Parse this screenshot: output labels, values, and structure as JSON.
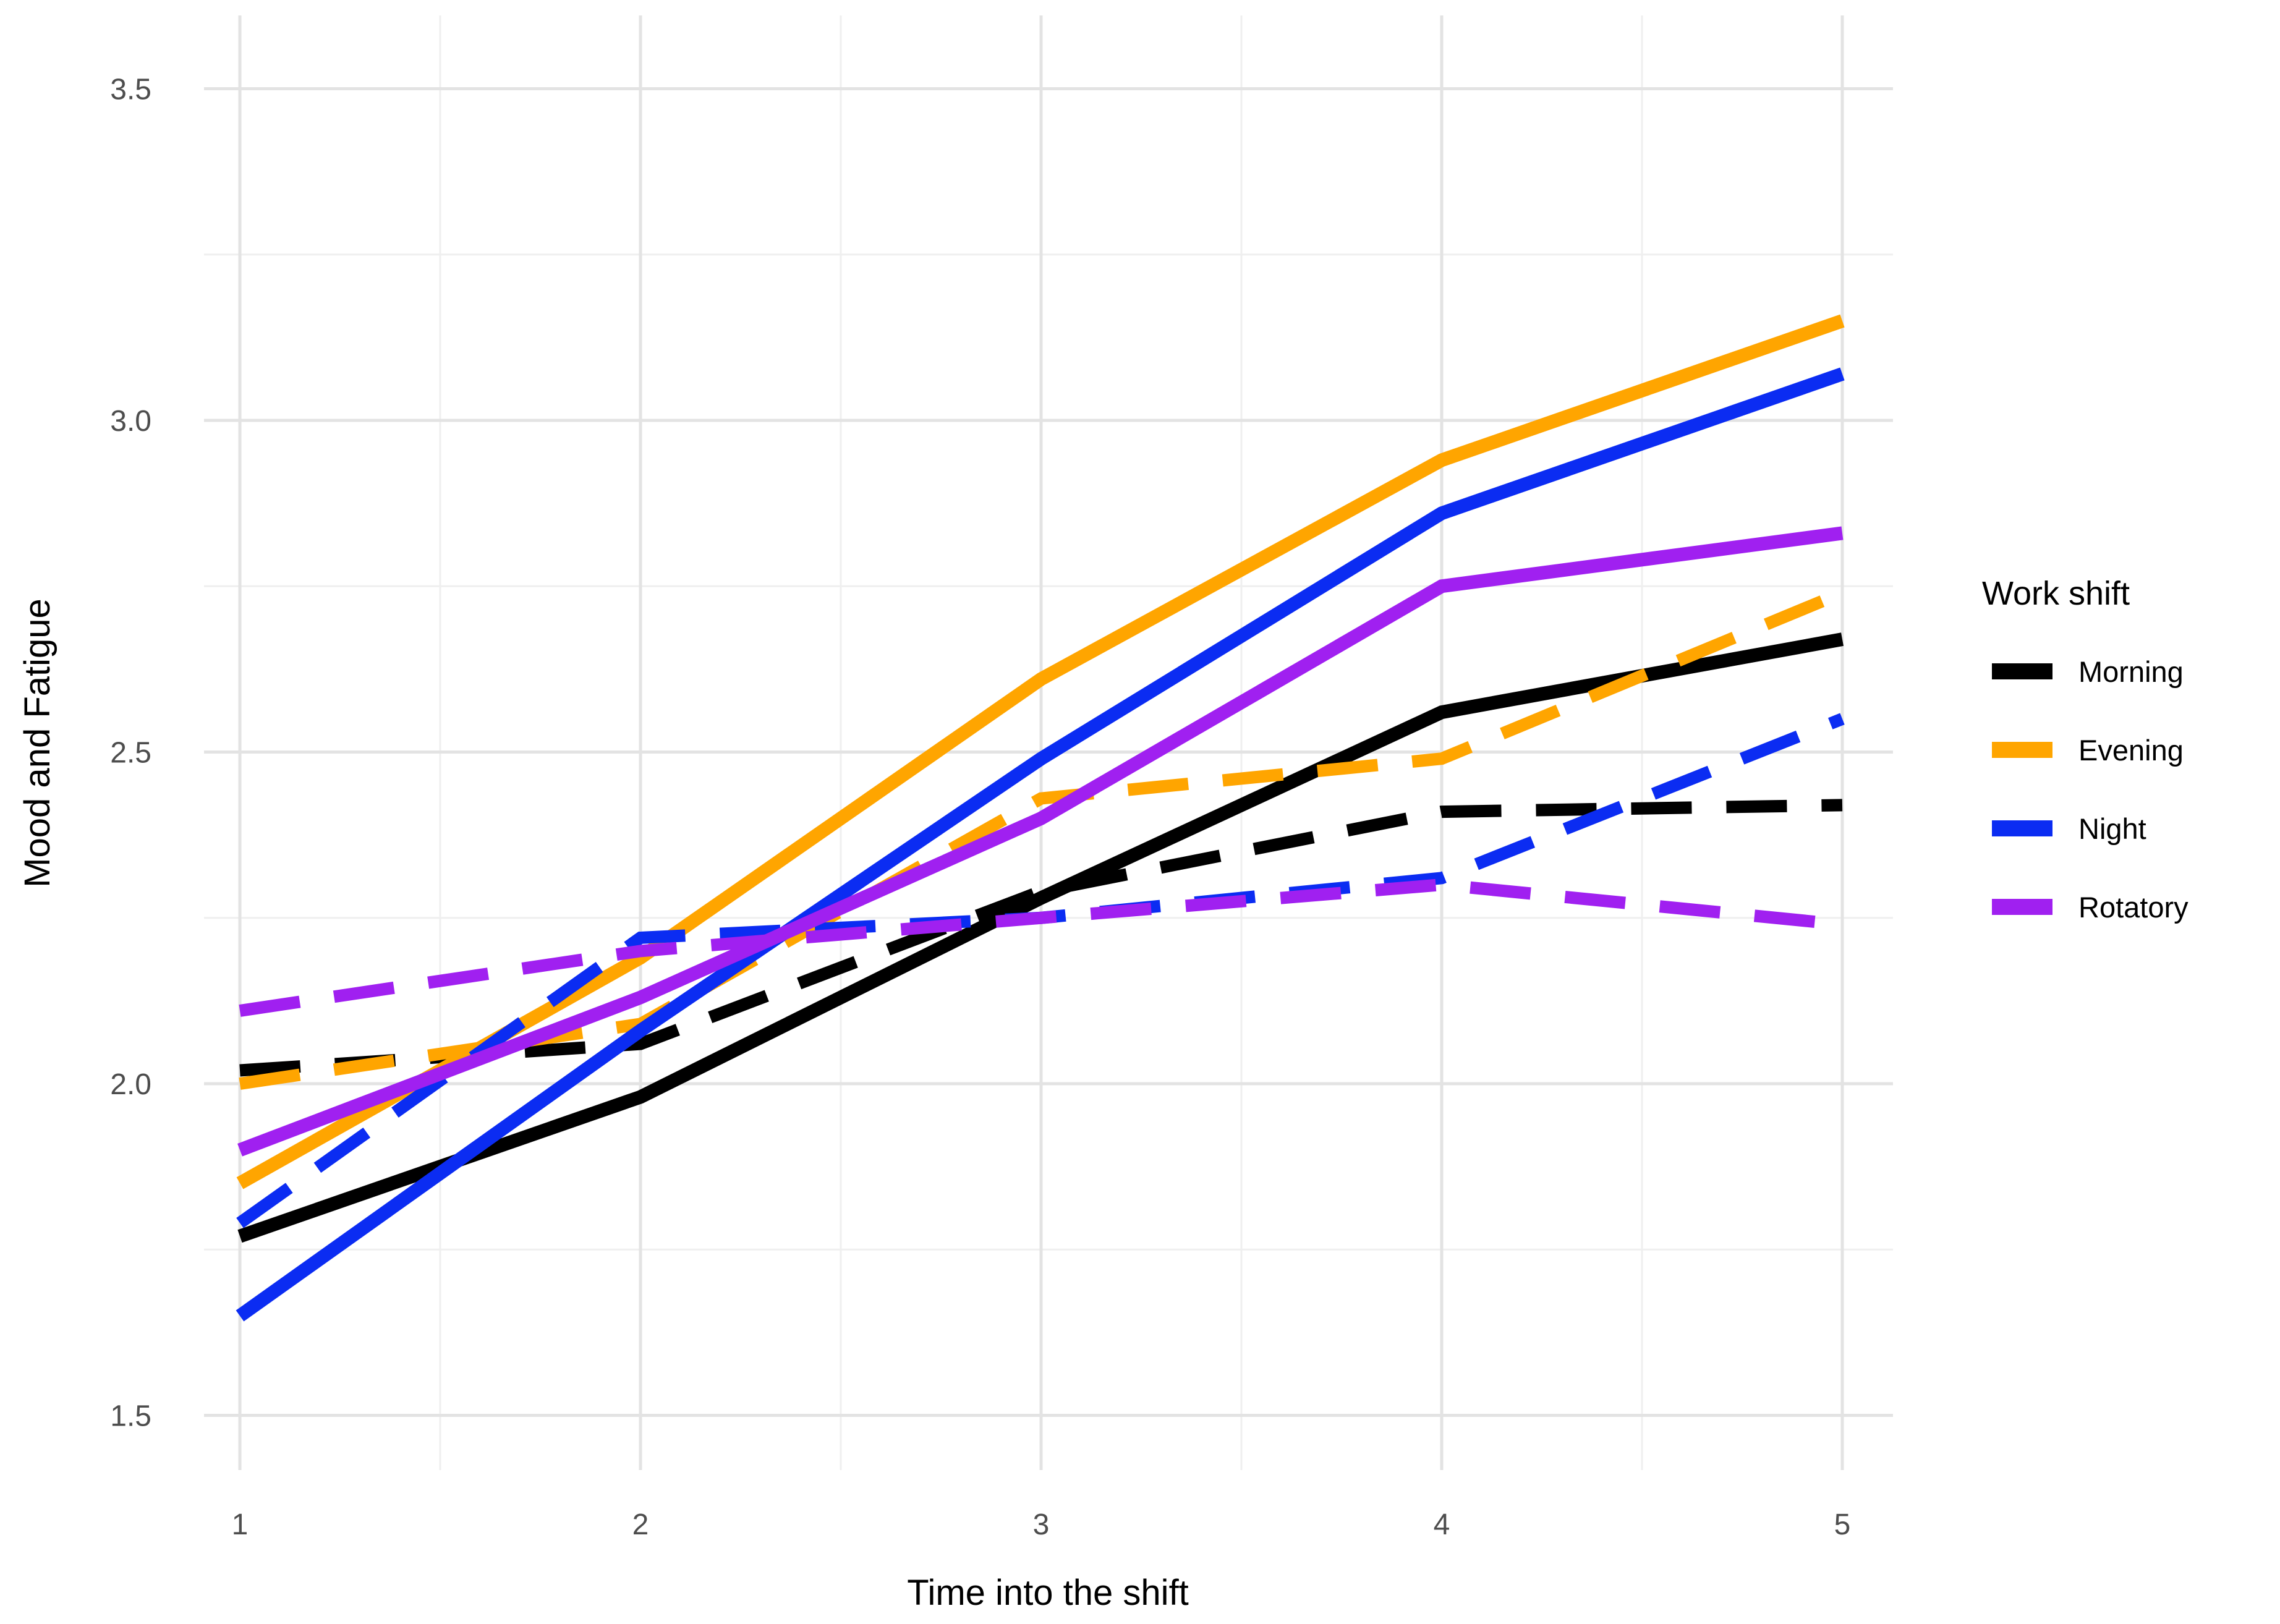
{
  "figure": {
    "background_color": "#ffffff",
    "gridline_major_color": "#e3e3e3",
    "gridline_minor_color": "#efefef"
  },
  "chart_data": {
    "type": "line",
    "title": "",
    "xlabel": "Time into the shift",
    "ylabel": "Mood and Fatigue",
    "x": [
      1,
      2,
      3,
      4,
      5
    ],
    "x_tick_labels": [
      "1",
      "2",
      "3",
      "4",
      "5"
    ],
    "y_ticks": [
      1.5,
      2.0,
      2.5,
      3.0,
      3.5
    ],
    "y_tick_labels": [
      "1.5",
      "2.0",
      "2.5",
      "3.0",
      "3.5"
    ],
    "x_range": [
      0.91,
      5.13
    ],
    "y_range": [
      1.42,
      3.59
    ],
    "grid": {
      "visible": true,
      "x_minor": [
        1.5,
        2.5,
        3.5,
        4.5
      ],
      "y_minor": [
        1.75,
        2.25,
        2.75,
        3.25
      ]
    },
    "legend": {
      "title": "Work shift",
      "position": "right",
      "items": [
        {
          "label": "Morning",
          "color": "#000000"
        },
        {
          "label": "Evening",
          "color": "#FFA500"
        },
        {
          "label": "Night",
          "color": "#0B2CF2"
        },
        {
          "label": "Rotatory",
          "color": "#A020F0"
        }
      ]
    },
    "series": [
      {
        "name": "Morning solid",
        "shift": "Morning",
        "color": "#000000",
        "linetype": "solid",
        "values": [
          1.77,
          1.98,
          2.28,
          2.56,
          2.67
        ]
      },
      {
        "name": "Morning dashed",
        "shift": "Morning",
        "color": "#000000",
        "linetype": "dashed",
        "values": [
          2.02,
          2.06,
          2.29,
          2.41,
          2.42
        ]
      },
      {
        "name": "Evening solid",
        "shift": "Evening",
        "color": "#FFA500",
        "linetype": "solid",
        "values": [
          1.85,
          2.19,
          2.61,
          2.94,
          3.15
        ]
      },
      {
        "name": "Evening dashed",
        "shift": "Evening",
        "color": "#FFA500",
        "linetype": "dashed",
        "values": [
          2.0,
          2.09,
          2.43,
          2.49,
          2.74
        ]
      },
      {
        "name": "Night solid",
        "shift": "Night",
        "color": "#0B2CF2",
        "linetype": "solid",
        "values": [
          1.65,
          2.08,
          2.49,
          2.86,
          3.07
        ]
      },
      {
        "name": "Night dashed",
        "shift": "Night",
        "color": "#0B2CF2",
        "linetype": "dashed",
        "values": [
          1.79,
          2.22,
          2.25,
          2.31,
          2.55
        ]
      },
      {
        "name": "Rotatory solid",
        "shift": "Rotatory",
        "color": "#A020F0",
        "linetype": "solid",
        "values": [
          1.9,
          2.13,
          2.4,
          2.75,
          2.83
        ]
      },
      {
        "name": "Rotatory dashed",
        "shift": "Rotatory",
        "color": "#A020F0",
        "linetype": "dashed",
        "values": [
          2.11,
          2.2,
          2.25,
          2.3,
          2.24
        ]
      }
    ]
  }
}
